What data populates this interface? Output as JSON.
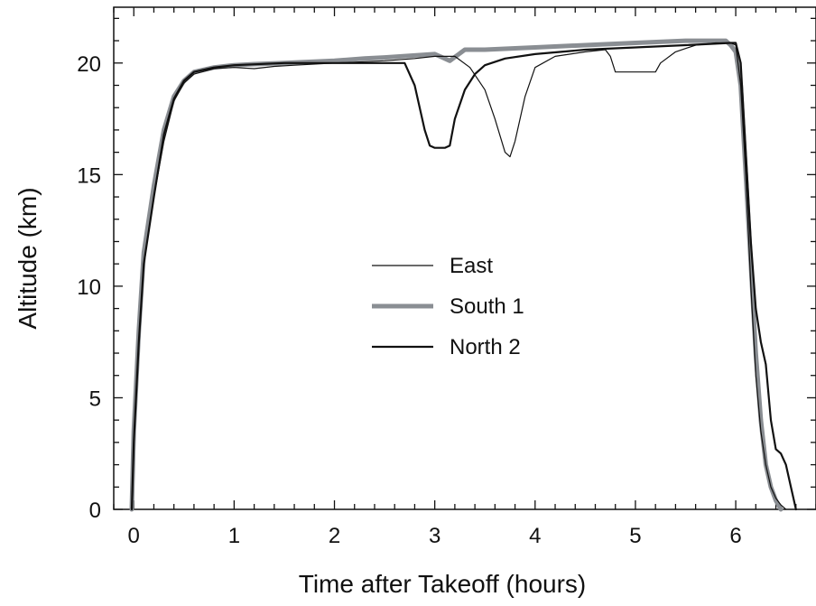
{
  "chart_data": {
    "type": "line",
    "title": "",
    "xlabel": "Time after Takeoff (hours)",
    "ylabel": "Altitude  (km)",
    "xlim": [
      -0.2,
      6.8
    ],
    "ylim": [
      0,
      22.5
    ],
    "xticks": [
      0,
      1,
      2,
      3,
      4,
      5,
      6
    ],
    "yticks": [
      0,
      5,
      10,
      15,
      20
    ],
    "grid": false,
    "legend_position": "center",
    "series": [
      {
        "name": "East",
        "color": "#111111",
        "style": "thin",
        "x": [
          -0.02,
          0.0,
          0.05,
          0.1,
          0.2,
          0.3,
          0.4,
          0.5,
          0.6,
          0.8,
          1.0,
          1.2,
          1.4,
          1.6,
          2.0,
          2.5,
          2.8,
          3.0,
          3.2,
          3.35,
          3.5,
          3.6,
          3.7,
          3.75,
          3.8,
          3.9,
          4.0,
          4.2,
          4.5,
          4.7,
          4.75,
          4.8,
          5.0,
          5.2,
          5.25,
          5.4,
          5.6,
          5.8,
          5.95,
          6.0,
          6.05,
          6.1,
          6.15,
          6.2,
          6.25,
          6.3,
          6.35,
          6.4,
          6.45,
          6.5
        ],
        "y": [
          0,
          3,
          7.5,
          11,
          14,
          16.5,
          18.3,
          19.1,
          19.5,
          19.75,
          19.8,
          19.75,
          19.85,
          19.9,
          20.0,
          20.1,
          20.2,
          20.3,
          20.3,
          19.8,
          18.8,
          17.5,
          16.0,
          15.8,
          16.5,
          18.5,
          19.8,
          20.3,
          20.5,
          20.6,
          20.3,
          19.6,
          19.6,
          19.6,
          20.0,
          20.5,
          20.8,
          20.9,
          20.9,
          20.8,
          19.0,
          15.0,
          10.0,
          6.0,
          3.5,
          2.0,
          1.0,
          0.5,
          0.2,
          0
        ]
      },
      {
        "name": "South 1",
        "color": "#8a8e93",
        "style": "thick",
        "x": [
          -0.02,
          0.0,
          0.05,
          0.1,
          0.2,
          0.3,
          0.4,
          0.5,
          0.6,
          0.8,
          1.0,
          1.2,
          1.5,
          2.0,
          2.3,
          2.5,
          3.0,
          3.15,
          3.3,
          3.5,
          4.0,
          4.5,
          5.0,
          5.5,
          5.9,
          5.95,
          6.0,
          6.05,
          6.1,
          6.15,
          6.2,
          6.25,
          6.3,
          6.35,
          6.4,
          6.45
        ],
        "y": [
          0,
          3.5,
          8,
          11.5,
          14.5,
          17.0,
          18.5,
          19.2,
          19.6,
          19.8,
          19.9,
          19.95,
          20.0,
          20.1,
          20.2,
          20.25,
          20.4,
          20.1,
          20.6,
          20.6,
          20.7,
          20.8,
          20.9,
          21.0,
          21.0,
          20.8,
          20.5,
          19.0,
          15.0,
          11.0,
          7.0,
          4.0,
          2.0,
          1.0,
          0.4,
          0
        ]
      },
      {
        "name": "North 2",
        "color": "#111111",
        "style": "medium",
        "x": [
          -0.02,
          0.0,
          0.05,
          0.1,
          0.2,
          0.3,
          0.4,
          0.5,
          0.6,
          0.8,
          1.0,
          1.5,
          2.0,
          2.5,
          2.7,
          2.8,
          2.9,
          2.95,
          3.0,
          3.05,
          3.1,
          3.15,
          3.2,
          3.3,
          3.4,
          3.5,
          3.7,
          4.0,
          4.5,
          5.0,
          5.5,
          5.95,
          6.0,
          6.05,
          6.1,
          6.15,
          6.2,
          6.25,
          6.3,
          6.35,
          6.4,
          6.45,
          6.5,
          6.55,
          6.6
        ],
        "y": [
          0,
          3,
          7.5,
          11,
          14,
          16.8,
          18.4,
          19.2,
          19.6,
          19.8,
          19.9,
          20.0,
          20.0,
          20.0,
          20.0,
          19.0,
          17.0,
          16.3,
          16.2,
          16.2,
          16.2,
          16.3,
          17.5,
          18.8,
          19.5,
          19.9,
          20.2,
          20.4,
          20.6,
          20.7,
          20.8,
          20.9,
          20.9,
          20.0,
          16.0,
          12.0,
          9.0,
          7.5,
          6.5,
          4.0,
          2.7,
          2.5,
          2.0,
          1.0,
          0
        ]
      }
    ]
  }
}
